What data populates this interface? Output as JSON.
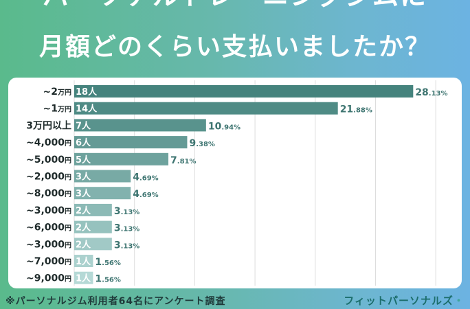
{
  "header": {
    "title_line1": "パーソナルトレーニングジムに",
    "title_line2": "月額どのくらい支払いましたか？"
  },
  "footer": {
    "note": "※パーソナルジム利用者64名にアンケート調査",
    "brand": "フィットパーソナルズ",
    "brand_mark": "・"
  },
  "colors": {
    "bar_dark": "#45837d",
    "bar_light": "#b5d9d6",
    "gridline": "#dddddd",
    "label_text": "#1e2a2a",
    "value_text": "#3e7571",
    "count_text": "#ffffff"
  },
  "chart_data": {
    "type": "bar",
    "orientation": "horizontal",
    "title": "パーソナルトレーニングジムに月額どのくらい支払いましたか？",
    "categories": [
      {
        "main": "~2",
        "suffix": "万円"
      },
      {
        "main": "~1",
        "suffix": "万円"
      },
      {
        "main": "3万円以上",
        "suffix": ""
      },
      {
        "main": "~4,000",
        "suffix": "円"
      },
      {
        "main": "~5,000",
        "suffix": "円"
      },
      {
        "main": "~2,000",
        "suffix": "円"
      },
      {
        "main": "~8,000",
        "suffix": "円"
      },
      {
        "main": "~3,000",
        "suffix": "円"
      },
      {
        "main": "~6,000",
        "suffix": "円"
      },
      {
        "main": "~3,000",
        "suffix": "円"
      },
      {
        "main": "~7,000",
        "suffix": "円"
      },
      {
        "main": "~9,000",
        "suffix": "円"
      }
    ],
    "counts": [
      18,
      14,
      7,
      6,
      5,
      3,
      3,
      2,
      2,
      2,
      1,
      1
    ],
    "count_unit": "人",
    "percent_labels": [
      {
        "int": "28",
        "dec": ".13%"
      },
      {
        "int": "21",
        "dec": ".88%"
      },
      {
        "int": "10",
        "dec": ".94%"
      },
      {
        "int": "9",
        "dec": ".38%"
      },
      {
        "int": "7",
        "dec": ".81%"
      },
      {
        "int": "4",
        "dec": ".69%"
      },
      {
        "int": "4",
        "dec": ".69%"
      },
      {
        "int": "3",
        "dec": ".13%"
      },
      {
        "int": "3",
        "dec": ".13%"
      },
      {
        "int": "3",
        "dec": ".13%"
      },
      {
        "int": "1",
        "dec": ".56%"
      },
      {
        "int": "1",
        "dec": ".56%"
      }
    ],
    "total_respondents": 64,
    "xlim": [
      0,
      30
    ],
    "grid": true,
    "legend": "none"
  }
}
